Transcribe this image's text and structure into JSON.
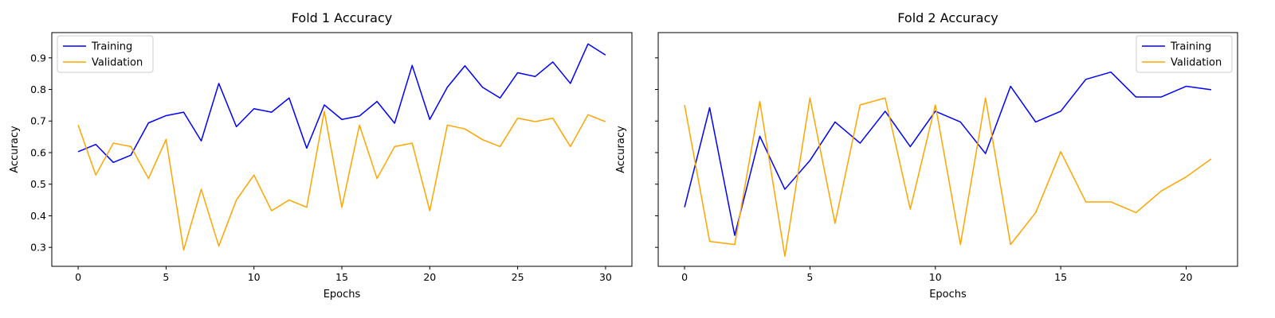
{
  "chart_data": [
    {
      "type": "line",
      "title": "Fold 1 Accuracy",
      "xlabel": "Epochs",
      "ylabel": "Accuracy",
      "xlim": [
        -1.5,
        31.5
      ],
      "ylim": [
        0.24,
        0.98
      ],
      "xticks": [
        0,
        5,
        10,
        15,
        20,
        25,
        30
      ],
      "yticks": [
        0.3,
        0.4,
        0.5,
        0.6,
        0.7,
        0.8,
        0.9
      ],
      "legend_position": "top-left",
      "grid": false,
      "series": [
        {
          "name": "Training",
          "color": "#0000ff",
          "x": [
            0,
            1,
            2,
            3,
            4,
            5,
            6,
            7,
            8,
            9,
            10,
            11,
            12,
            13,
            14,
            15,
            16,
            17,
            18,
            19,
            20,
            21,
            22,
            23,
            24,
            25,
            26,
            27,
            28,
            29,
            30
          ],
          "values": [
            0.603,
            0.626,
            0.569,
            0.592,
            0.694,
            0.717,
            0.728,
            0.637,
            0.819,
            0.682,
            0.739,
            0.728,
            0.773,
            0.614,
            0.751,
            0.705,
            0.716,
            0.762,
            0.693,
            0.876,
            0.705,
            0.807,
            0.875,
            0.807,
            0.773,
            0.853,
            0.841,
            0.887,
            0.819,
            0.944,
            0.909
          ]
        },
        {
          "name": "Validation",
          "color": "#ffa500",
          "x": [
            0,
            1,
            2,
            3,
            4,
            5,
            6,
            7,
            8,
            9,
            10,
            11,
            12,
            13,
            14,
            15,
            16,
            17,
            18,
            19,
            20,
            21,
            22,
            23,
            24,
            25,
            26,
            27,
            28,
            29,
            30
          ],
          "values": [
            0.687,
            0.529,
            0.63,
            0.619,
            0.518,
            0.642,
            0.292,
            0.484,
            0.304,
            0.45,
            0.529,
            0.416,
            0.45,
            0.427,
            0.731,
            0.427,
            0.687,
            0.518,
            0.619,
            0.63,
            0.416,
            0.687,
            0.675,
            0.641,
            0.619,
            0.709,
            0.698,
            0.709,
            0.619,
            0.72,
            0.698
          ]
        }
      ]
    },
    {
      "type": "line",
      "title": "Fold 2 Accuracy",
      "xlabel": "Epochs",
      "ylabel": "Accuracy",
      "xlim": [
        -1.05,
        22.05
      ],
      "ylim": [
        0.24,
        0.98
      ],
      "xticks": [
        0,
        5,
        10,
        15,
        20
      ],
      "yticks": [
        0.3,
        0.4,
        0.5,
        0.6,
        0.7,
        0.8,
        0.9
      ],
      "show_ytick_labels": false,
      "legend_position": "top-right",
      "grid": false,
      "series": [
        {
          "name": "Training",
          "color": "#0000ff",
          "x": [
            0,
            1,
            2,
            3,
            4,
            5,
            6,
            7,
            8,
            9,
            10,
            11,
            12,
            13,
            14,
            15,
            16,
            17,
            18,
            19,
            20,
            21
          ],
          "values": [
            0.427,
            0.742,
            0.338,
            0.652,
            0.484,
            0.575,
            0.697,
            0.63,
            0.731,
            0.619,
            0.731,
            0.697,
            0.597,
            0.81,
            0.697,
            0.731,
            0.832,
            0.855,
            0.776,
            0.776,
            0.81,
            0.799
          ]
        },
        {
          "name": "Validation",
          "color": "#ffa500",
          "x": [
            0,
            1,
            2,
            3,
            4,
            5,
            6,
            7,
            8,
            9,
            10,
            11,
            12,
            13,
            14,
            15,
            16,
            17,
            18,
            19,
            20,
            21
          ],
          "values": [
            0.751,
            0.319,
            0.309,
            0.762,
            0.272,
            0.773,
            0.376,
            0.751,
            0.773,
            0.421,
            0.751,
            0.309,
            0.773,
            0.309,
            0.41,
            0.603,
            0.444,
            0.444,
            0.41,
            0.478,
            0.523,
            0.58
          ]
        }
      ]
    }
  ]
}
